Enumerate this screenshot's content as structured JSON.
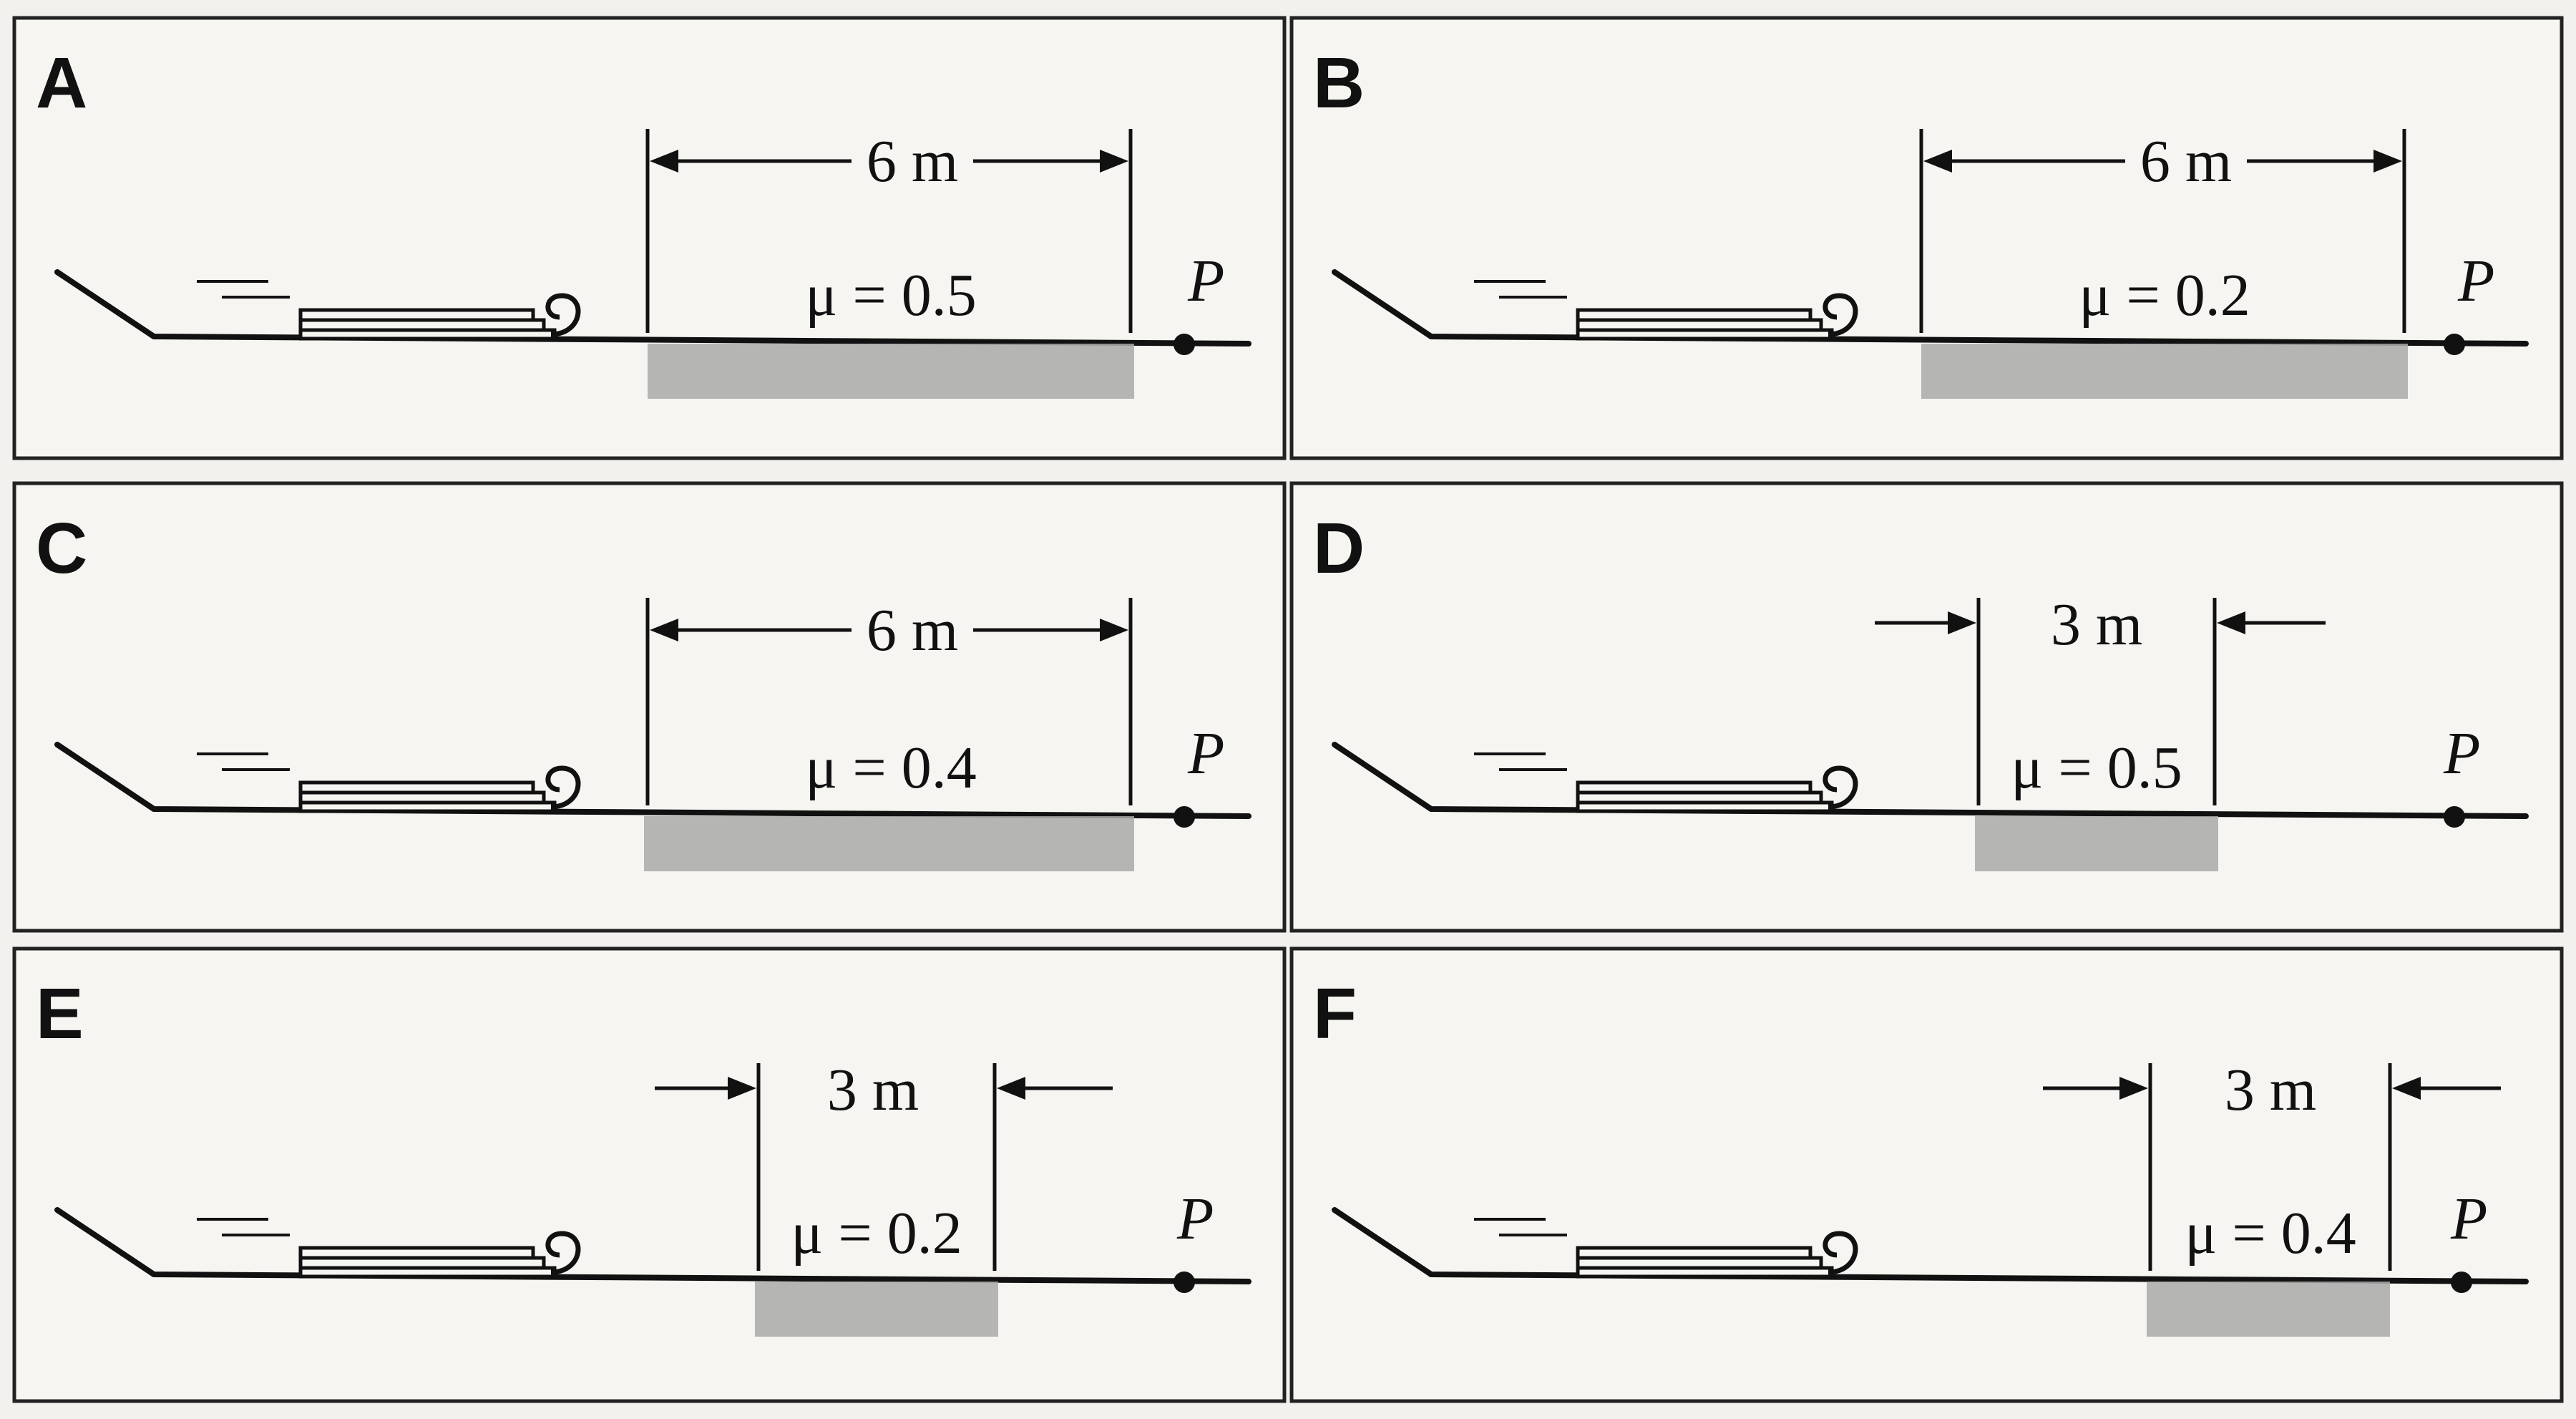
{
  "panels": [
    {
      "letter": "A",
      "distance_m": 6,
      "distance_label": "6 m",
      "mu_label": "μ = 0.5",
      "point_label": "P"
    },
    {
      "letter": "B",
      "distance_m": 6,
      "distance_label": "6 m",
      "mu_label": "μ = 0.2",
      "point_label": "P"
    },
    {
      "letter": "C",
      "distance_m": 6,
      "distance_label": "6 m",
      "mu_label": "μ = 0.4",
      "point_label": "P"
    },
    {
      "letter": "D",
      "distance_m": 3,
      "distance_label": "3 m",
      "mu_label": "μ = 0.5",
      "point_label": "P"
    },
    {
      "letter": "E",
      "distance_m": 3,
      "distance_label": "3 m",
      "mu_label": "μ = 0.2",
      "point_label": "P"
    },
    {
      "letter": "F",
      "distance_m": 3,
      "distance_label": "3 m",
      "mu_label": "μ = 0.4",
      "point_label": "P"
    }
  ]
}
